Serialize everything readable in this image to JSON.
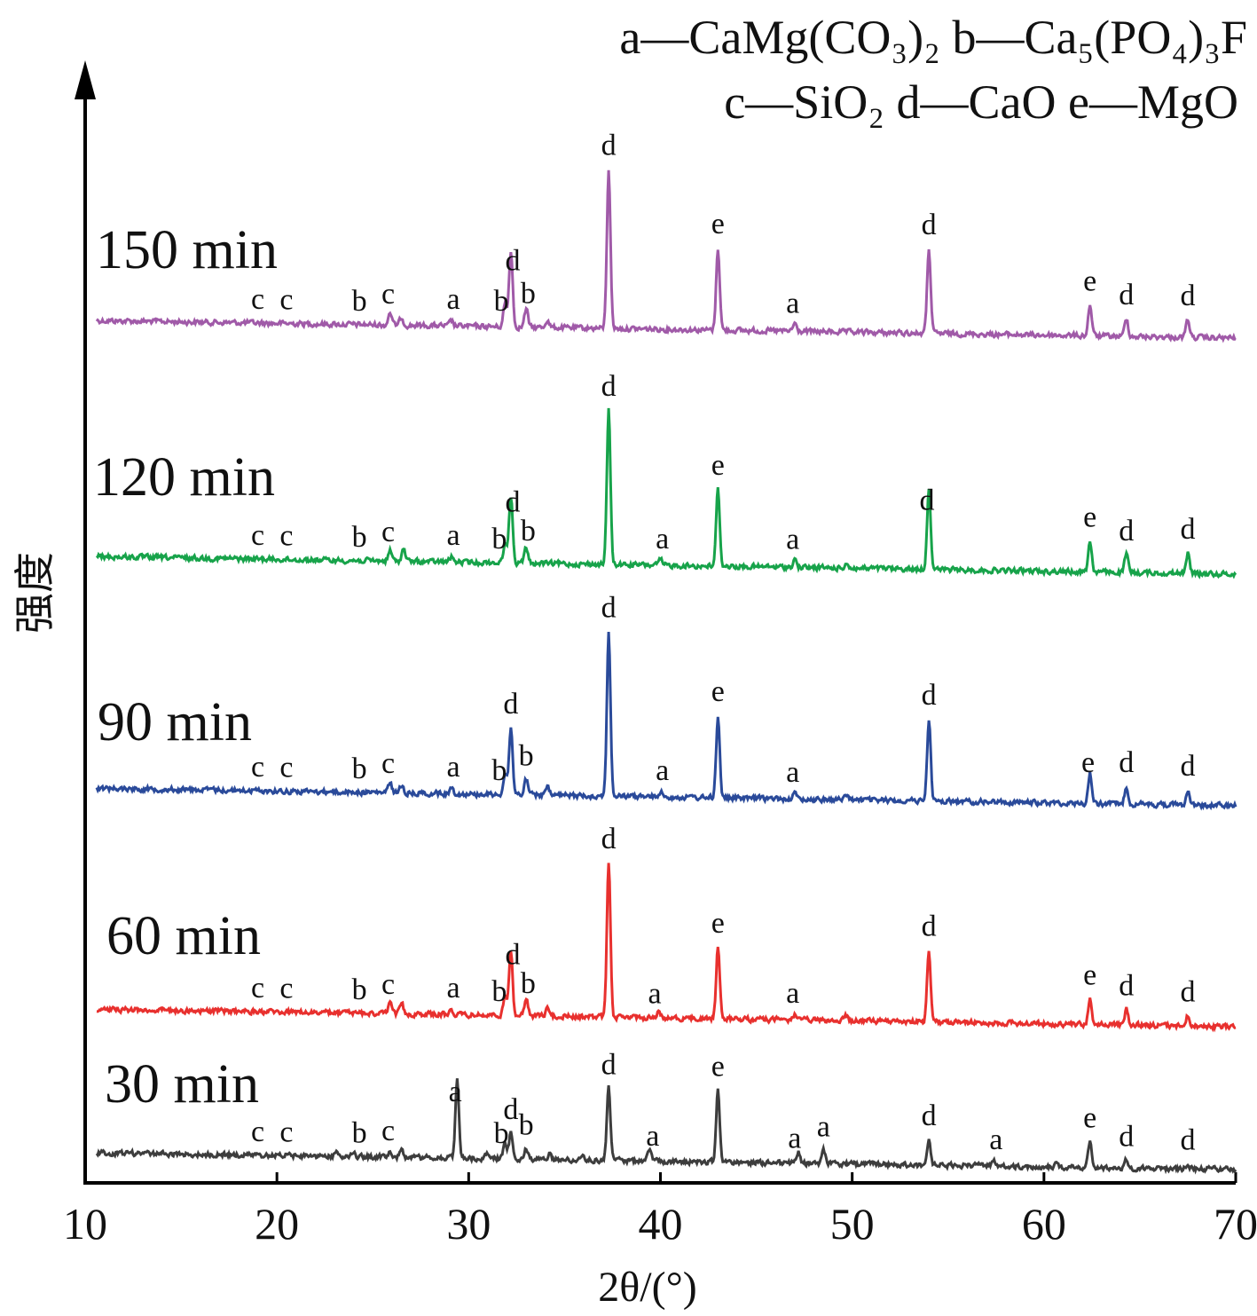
{
  "chart_data": {
    "type": "line",
    "xlabel": "2θ/(°)",
    "ylabel": "强度",
    "xlim": [
      10,
      70
    ],
    "xticks": [
      "10",
      "20",
      "30",
      "40",
      "50",
      "60",
      "70"
    ],
    "legend": {
      "line1": [
        {
          "key": "a",
          "formula": "CaMg(CO₃)₂"
        },
        {
          "key": "b",
          "formula": "Ca₅(PO₄)₃F"
        }
      ],
      "line2": [
        {
          "key": "c",
          "formula": "SiO₂"
        },
        {
          "key": "d",
          "formula": "CaO"
        },
        {
          "key": "e",
          "formula": "MgO"
        }
      ]
    },
    "series": [
      {
        "name": "150 min",
        "color": "#a05aa8",
        "peaks": [
          {
            "x": 25.9,
            "h": 0.05
          },
          {
            "x": 26.5,
            "h": 0.03
          },
          {
            "x": 29.1,
            "h": 0.02
          },
          {
            "x": 31.9,
            "h": 0.09
          },
          {
            "x": 32.2,
            "h": 0.3
          },
          {
            "x": 33.0,
            "h": 0.07
          },
          {
            "x": 34.1,
            "h": 0.03
          },
          {
            "x": 37.3,
            "h": 0.62
          },
          {
            "x": 43.0,
            "h": 0.32
          },
          {
            "x": 47.0,
            "h": 0.03
          },
          {
            "x": 54.0,
            "h": 0.33
          },
          {
            "x": 62.4,
            "h": 0.12
          },
          {
            "x": 64.3,
            "h": 0.07
          },
          {
            "x": 67.5,
            "h": 0.07
          }
        ],
        "labels": [
          {
            "x": 19.0,
            "text": "c"
          },
          {
            "x": 20.5,
            "text": "c"
          },
          {
            "x": 24.3,
            "text": "b"
          },
          {
            "x": 25.8,
            "text": "c"
          },
          {
            "x": 29.2,
            "text": "a"
          },
          {
            "x": 31.7,
            "text": "b"
          },
          {
            "x": 32.3,
            "text": "d"
          },
          {
            "x": 33.1,
            "text": "b"
          },
          {
            "x": 37.3,
            "text": "d"
          },
          {
            "x": 43.0,
            "text": "e"
          },
          {
            "x": 46.9,
            "text": "a"
          },
          {
            "x": 54.0,
            "text": "d"
          },
          {
            "x": 62.4,
            "text": "e"
          },
          {
            "x": 64.3,
            "text": "d"
          },
          {
            "x": 67.5,
            "text": "d"
          }
        ]
      },
      {
        "name": "120 min",
        "color": "#17a34a",
        "peaks": [
          {
            "x": 25.9,
            "h": 0.04
          },
          {
            "x": 26.6,
            "h": 0.05
          },
          {
            "x": 29.1,
            "h": 0.02
          },
          {
            "x": 31.9,
            "h": 0.08
          },
          {
            "x": 32.2,
            "h": 0.26
          },
          {
            "x": 33.0,
            "h": 0.06
          },
          {
            "x": 37.3,
            "h": 0.6
          },
          {
            "x": 40.0,
            "h": 0.02
          },
          {
            "x": 43.0,
            "h": 0.3
          },
          {
            "x": 47.0,
            "h": 0.03
          },
          {
            "x": 49.7,
            "h": 0.02
          },
          {
            "x": 54.0,
            "h": 0.32
          },
          {
            "x": 62.4,
            "h": 0.12
          },
          {
            "x": 64.3,
            "h": 0.07
          },
          {
            "x": 67.5,
            "h": 0.08
          }
        ],
        "labels": [
          {
            "x": 19.0,
            "text": "c"
          },
          {
            "x": 20.5,
            "text": "c"
          },
          {
            "x": 24.3,
            "text": "b"
          },
          {
            "x": 25.8,
            "text": "c"
          },
          {
            "x": 29.2,
            "text": "a"
          },
          {
            "x": 31.6,
            "text": "b"
          },
          {
            "x": 32.3,
            "text": "d"
          },
          {
            "x": 33.1,
            "text": "b"
          },
          {
            "x": 37.3,
            "text": "d"
          },
          {
            "x": 40.1,
            "text": "a"
          },
          {
            "x": 43.0,
            "text": "e"
          },
          {
            "x": 46.9,
            "text": "a"
          },
          {
            "x": 53.9,
            "text": "d"
          },
          {
            "x": 62.4,
            "text": "e"
          },
          {
            "x": 64.3,
            "text": "d"
          },
          {
            "x": 67.5,
            "text": "d"
          }
        ]
      },
      {
        "name": "90 min",
        "color": "#2a4a9a",
        "peaks": [
          {
            "x": 25.9,
            "h": 0.04
          },
          {
            "x": 26.5,
            "h": 0.03
          },
          {
            "x": 29.1,
            "h": 0.02
          },
          {
            "x": 31.9,
            "h": 0.08
          },
          {
            "x": 32.2,
            "h": 0.26
          },
          {
            "x": 33.0,
            "h": 0.06
          },
          {
            "x": 34.1,
            "h": 0.03
          },
          {
            "x": 37.3,
            "h": 0.64
          },
          {
            "x": 40.0,
            "h": 0.02
          },
          {
            "x": 43.0,
            "h": 0.32
          },
          {
            "x": 47.0,
            "h": 0.02
          },
          {
            "x": 49.7,
            "h": 0.02
          },
          {
            "x": 54.0,
            "h": 0.32
          },
          {
            "x": 62.4,
            "h": 0.12
          },
          {
            "x": 64.3,
            "h": 0.07
          },
          {
            "x": 67.5,
            "h": 0.06
          }
        ],
        "labels": [
          {
            "x": 19.0,
            "text": "c"
          },
          {
            "x": 20.5,
            "text": "c"
          },
          {
            "x": 24.3,
            "text": "b"
          },
          {
            "x": 25.8,
            "text": "c"
          },
          {
            "x": 29.2,
            "text": "a"
          },
          {
            "x": 31.6,
            "text": "b"
          },
          {
            "x": 32.2,
            "text": "d"
          },
          {
            "x": 33.0,
            "text": "b"
          },
          {
            "x": 37.3,
            "text": "d"
          },
          {
            "x": 40.1,
            "text": "a"
          },
          {
            "x": 43.0,
            "text": "e"
          },
          {
            "x": 46.9,
            "text": "a"
          },
          {
            "x": 54.0,
            "text": "d"
          },
          {
            "x": 62.3,
            "text": "e"
          },
          {
            "x": 64.3,
            "text": "d"
          },
          {
            "x": 67.5,
            "text": "d"
          }
        ]
      },
      {
        "name": "60 min",
        "color": "#e8302e",
        "peaks": [
          {
            "x": 25.9,
            "h": 0.04
          },
          {
            "x": 26.5,
            "h": 0.04
          },
          {
            "x": 29.1,
            "h": 0.02
          },
          {
            "x": 31.9,
            "h": 0.07
          },
          {
            "x": 32.2,
            "h": 0.26
          },
          {
            "x": 33.0,
            "h": 0.06
          },
          {
            "x": 34.1,
            "h": 0.03
          },
          {
            "x": 37.3,
            "h": 0.6
          },
          {
            "x": 39.9,
            "h": 0.02
          },
          {
            "x": 43.0,
            "h": 0.28
          },
          {
            "x": 47.0,
            "h": 0.02
          },
          {
            "x": 49.7,
            "h": 0.02
          },
          {
            "x": 54.0,
            "h": 0.28
          },
          {
            "x": 62.4,
            "h": 0.1
          },
          {
            "x": 64.3,
            "h": 0.06
          },
          {
            "x": 67.5,
            "h": 0.04
          }
        ],
        "labels": [
          {
            "x": 19.0,
            "text": "c"
          },
          {
            "x": 20.5,
            "text": "c"
          },
          {
            "x": 24.3,
            "text": "b"
          },
          {
            "x": 25.8,
            "text": "c"
          },
          {
            "x": 29.2,
            "text": "a"
          },
          {
            "x": 31.6,
            "text": "b"
          },
          {
            "x": 32.3,
            "text": "d"
          },
          {
            "x": 33.1,
            "text": "b"
          },
          {
            "x": 37.3,
            "text": "d"
          },
          {
            "x": 39.7,
            "text": "a"
          },
          {
            "x": 43.0,
            "text": "e"
          },
          {
            "x": 46.9,
            "text": "a"
          },
          {
            "x": 54.0,
            "text": "d"
          },
          {
            "x": 62.4,
            "text": "e"
          },
          {
            "x": 64.3,
            "text": "d"
          },
          {
            "x": 67.5,
            "text": "d"
          }
        ]
      },
      {
        "name": "30 min",
        "color": "#3d3d3d",
        "peaks": [
          {
            "x": 23.1,
            "h": 0.02
          },
          {
            "x": 24.0,
            "h": 0.01
          },
          {
            "x": 25.9,
            "h": 0.02
          },
          {
            "x": 26.5,
            "h": 0.03
          },
          {
            "x": 29.4,
            "h": 0.3
          },
          {
            "x": 30.9,
            "h": 0.02
          },
          {
            "x": 31.9,
            "h": 0.06
          },
          {
            "x": 32.2,
            "h": 0.1
          },
          {
            "x": 33.0,
            "h": 0.04
          },
          {
            "x": 34.2,
            "h": 0.02
          },
          {
            "x": 35.9,
            "h": 0.02
          },
          {
            "x": 37.3,
            "h": 0.28
          },
          {
            "x": 39.4,
            "h": 0.05
          },
          {
            "x": 43.0,
            "h": 0.28
          },
          {
            "x": 47.2,
            "h": 0.04
          },
          {
            "x": 48.5,
            "h": 0.05
          },
          {
            "x": 54.0,
            "h": 0.1
          },
          {
            "x": 57.4,
            "h": 0.02
          },
          {
            "x": 60.6,
            "h": 0.01
          },
          {
            "x": 62.4,
            "h": 0.1
          },
          {
            "x": 64.3,
            "h": 0.03
          },
          {
            "x": 67.5,
            "h": 0.02
          }
        ],
        "labels": [
          {
            "x": 19.0,
            "text": "c"
          },
          {
            "x": 20.5,
            "text": "c"
          },
          {
            "x": 24.3,
            "text": "b"
          },
          {
            "x": 25.8,
            "text": "c"
          },
          {
            "x": 29.3,
            "text": "a"
          },
          {
            "x": 31.7,
            "text": "b"
          },
          {
            "x": 32.2,
            "text": "d"
          },
          {
            "x": 33.0,
            "text": "b"
          },
          {
            "x": 37.3,
            "text": "d"
          },
          {
            "x": 39.6,
            "text": "a"
          },
          {
            "x": 43.0,
            "text": "e"
          },
          {
            "x": 47.0,
            "text": "a"
          },
          {
            "x": 48.5,
            "text": "a"
          },
          {
            "x": 54.0,
            "text": "d"
          },
          {
            "x": 57.5,
            "text": "a"
          },
          {
            "x": 62.4,
            "text": "e"
          },
          {
            "x": 64.3,
            "text": "d"
          },
          {
            "x": 67.5,
            "text": "d"
          }
        ]
      }
    ]
  }
}
